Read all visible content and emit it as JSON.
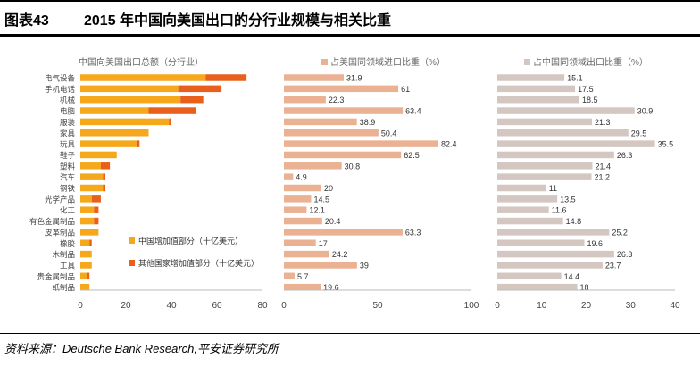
{
  "header": {
    "figure_label": "图表43",
    "title": "2015 年中国向美国出口的分行业规模与相关比重"
  },
  "source": "资料来源：Deutsche Bank Research,平安证券研究所",
  "colors": {
    "china": "#f5a81c",
    "other": "#e8601c",
    "us_share": "#eab293",
    "world_share": "#d4c6c0",
    "axis_text": "#444444",
    "title_text": "#666666"
  },
  "chart_data": [
    {
      "type": "bar",
      "orientation": "horizontal",
      "stacked": true,
      "title": "中国向美国出口总额（分行业）",
      "categories": [
        "电气设备",
        "手机电话",
        "机械",
        "电脑",
        "服装",
        "家具",
        "玩具",
        "鞋子",
        "塑料",
        "汽车",
        "钢铁",
        "光学产品",
        "化工",
        "有色金属制品",
        "皮革制品",
        "橡胶",
        "木制品",
        "工具",
        "贵金属制品",
        "纸制品"
      ],
      "series": [
        {
          "name": "中国增加值部分（十亿美元）",
          "values": [
            55,
            43,
            44,
            30,
            39,
            30,
            25,
            16,
            9,
            10,
            10,
            5,
            6,
            6,
            8,
            4,
            5,
            5,
            3,
            4
          ]
        },
        {
          "name": "其他国家增加值部分（十亿美元）",
          "values": [
            18,
            19,
            10,
            21,
            1,
            0,
            1,
            0,
            4,
            1,
            1,
            4,
            2,
            2,
            0,
            1,
            0,
            0,
            1,
            0
          ]
        }
      ],
      "xlim": [
        0,
        80
      ],
      "xticks": [
        0,
        20,
        40,
        60,
        80
      ]
    },
    {
      "type": "bar",
      "orientation": "horizontal",
      "title": "占美国同领域进口比重（%）",
      "categories": [
        "电气设备",
        "手机电话",
        "机械",
        "电脑",
        "服装",
        "家具",
        "玩具",
        "鞋子",
        "塑料",
        "汽车",
        "钢铁",
        "光学产品",
        "化工",
        "有色金属制品",
        "皮革制品",
        "橡胶",
        "木制品",
        "工具",
        "贵金属制品",
        "纸制品"
      ],
      "values": [
        31.9,
        61,
        22.3,
        63.4,
        38.9,
        50.4,
        82.4,
        62.5,
        30.8,
        4.9,
        20,
        14.5,
        12.1,
        20.4,
        63.3,
        17,
        24.2,
        39,
        5.7,
        19.6
      ],
      "labels": [
        "31.9",
        "61",
        "22.3",
        "63.4",
        "38.9",
        "50.4",
        "82.4",
        "62.5",
        "30.8",
        "4.9",
        "20",
        "14.5",
        "12.1",
        "20.4",
        "63.3",
        "17",
        "24.2",
        "39",
        "5.7",
        "19.6"
      ],
      "xlim": [
        0,
        100
      ],
      "xticks": [
        0,
        50,
        100
      ]
    },
    {
      "type": "bar",
      "orientation": "horizontal",
      "title": "占中国同领域出口比重（%）",
      "categories": [
        "电气设备",
        "手机电话",
        "机械",
        "电脑",
        "服装",
        "家具",
        "玩具",
        "鞋子",
        "塑料",
        "汽车",
        "钢铁",
        "光学产品",
        "化工",
        "有色金属制品",
        "皮革制品",
        "橡胶",
        "木制品",
        "工具",
        "贵金属制品",
        "纸制品"
      ],
      "values": [
        15.1,
        17.5,
        18.5,
        30.9,
        21.3,
        29.5,
        35.5,
        26.3,
        21.4,
        21.2,
        11,
        13.5,
        11.6,
        14.8,
        25.2,
        19.6,
        26.3,
        23.7,
        14.4,
        18
      ],
      "labels": [
        "15.1",
        "17.5",
        "18.5",
        "30.9",
        "21.3",
        "29.5",
        "35.5",
        "26.3",
        "21.4",
        "21.2",
        "11",
        "13.5",
        "11.6",
        "14.8",
        "25.2",
        "19.6",
        "26.3",
        "23.7",
        "14.4",
        "18"
      ],
      "xlim": [
        0,
        40
      ],
      "xticks": [
        0,
        10,
        20,
        30,
        40
      ]
    }
  ]
}
